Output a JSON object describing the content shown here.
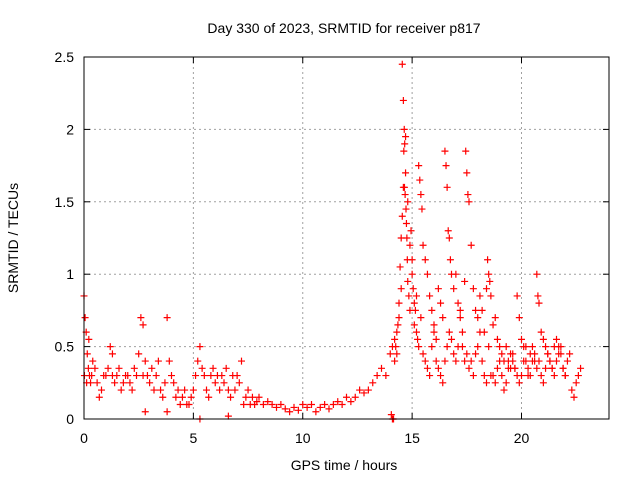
{
  "chart_data": {
    "type": "scatter",
    "title": "Day 330 of 2023, SRMTID for receiver p817",
    "xlabel": "GPS time / hours",
    "ylabel": "SRMTID / TECUs",
    "xlim": [
      0,
      24
    ],
    "ylim": [
      0,
      2.5
    ],
    "x_ticks": [
      0,
      5,
      10,
      15,
      20
    ],
    "y_ticks": [
      0,
      0.5,
      1,
      1.5,
      2,
      2.5
    ],
    "y_tick_labels": [
      "0",
      "0.5",
      "1",
      "1.5",
      "2",
      "2.5"
    ],
    "grid": true,
    "marker": "+",
    "color": "#ff0000",
    "series": [
      {
        "name": "p817",
        "x": [
          0.0,
          0.05,
          0.1,
          0.15,
          0.2,
          0.25,
          0.3,
          0.35,
          0.4,
          0.5,
          0.6,
          0.7,
          0.8,
          0.9,
          1.0,
          1.1,
          1.2,
          1.3,
          1.4,
          1.5,
          1.6,
          1.7,
          1.8,
          1.9,
          2.0,
          2.1,
          2.2,
          2.3,
          2.4,
          2.5,
          2.6,
          2.7,
          2.8,
          2.9,
          3.0,
          3.1,
          3.2,
          3.3,
          3.4,
          3.5,
          3.6,
          3.7,
          3.8,
          3.9,
          4.0,
          4.1,
          4.2,
          4.3,
          4.4,
          4.5,
          4.6,
          4.7,
          4.8,
          4.9,
          5.0,
          5.1,
          5.2,
          5.3,
          5.4,
          5.5,
          5.6,
          5.7,
          5.8,
          5.9,
          6.0,
          6.1,
          6.2,
          6.3,
          6.4,
          6.5,
          6.6,
          6.7,
          6.8,
          6.9,
          7.0,
          7.1,
          7.2,
          7.3,
          7.4,
          7.5,
          7.6,
          7.7,
          7.8,
          7.9,
          8.0,
          8.2,
          8.4,
          8.6,
          8.8,
          9.0,
          9.2,
          9.4,
          9.6,
          9.8,
          10.0,
          10.2,
          10.4,
          10.6,
          10.8,
          11.0,
          11.2,
          11.4,
          11.6,
          11.8,
          12.0,
          12.2,
          12.4,
          12.6,
          12.8,
          13.0,
          13.2,
          13.4,
          13.6,
          13.8,
          14.0,
          14.1,
          14.2,
          14.3,
          14.4,
          14.5,
          14.55,
          14.6,
          14.65,
          14.7,
          14.8,
          14.9,
          15.0,
          15.1,
          15.2,
          15.3,
          15.4,
          15.5,
          15.6,
          15.7,
          15.8,
          15.9,
          16.0,
          16.1,
          16.2,
          16.3,
          16.4,
          16.5,
          16.6,
          16.7,
          16.8,
          16.9,
          17.0,
          17.1,
          17.2,
          17.3,
          17.4,
          17.5,
          17.6,
          17.7,
          17.8,
          17.9,
          18.0,
          18.1,
          18.2,
          18.3,
          18.4,
          18.5,
          18.6,
          18.7,
          18.8,
          18.9,
          19.0,
          19.1,
          19.2,
          19.3,
          19.4,
          19.5,
          19.6,
          19.7,
          19.8,
          19.9,
          20.0,
          20.1,
          20.2,
          20.3,
          20.4,
          20.5,
          20.6,
          20.7,
          20.8,
          20.9,
          21.0,
          21.1,
          21.2,
          21.3,
          21.4,
          21.5,
          21.6,
          21.7,
          21.8,
          21.9,
          22.0,
          22.1,
          22.2,
          22.3,
          22.4,
          22.5,
          22.6,
          22.7,
          0.02,
          0.12,
          0.22,
          1.3,
          2.7,
          2.8,
          3.8,
          5.3,
          6.6,
          14.05,
          14.1,
          14.15,
          14.2,
          14.25,
          14.3,
          14.35,
          14.4,
          14.45,
          14.5,
          14.55,
          14.6,
          14.62,
          14.64,
          14.66,
          14.68,
          14.7,
          14.72,
          14.74,
          14.76,
          14.78,
          14.8,
          14.85,
          14.9,
          14.95,
          15.0,
          15.05,
          15.1,
          15.15,
          15.2,
          15.25,
          15.3,
          15.35,
          15.4,
          15.45,
          15.5,
          15.6,
          15.7,
          15.8,
          15.9,
          16.0,
          16.1,
          16.2,
          16.3,
          16.4,
          16.5,
          16.55,
          16.6,
          16.65,
          16.7,
          16.75,
          16.8,
          16.9,
          17.0,
          17.1,
          17.2,
          17.3,
          17.4,
          17.45,
          17.5,
          17.55,
          17.6,
          17.7,
          17.8,
          17.9,
          18.0,
          18.1,
          18.2,
          18.3,
          18.4,
          18.45,
          18.5,
          18.55,
          18.6,
          18.7,
          18.8,
          18.9,
          19.0,
          19.1,
          19.2,
          19.3,
          19.4,
          19.5,
          19.6,
          19.7,
          19.8,
          19.9,
          20.0,
          20.1,
          20.2,
          20.3,
          20.4,
          20.5,
          20.6,
          20.7,
          20.75,
          20.8,
          20.9,
          21.0,
          21.1,
          21.2,
          21.3,
          21.4,
          21.5,
          21.6,
          21.7,
          21.8,
          21.9,
          22.0
        ],
        "y": [
          0.85,
          0.7,
          0.6,
          0.45,
          0.35,
          0.3,
          0.25,
          0.3,
          0.4,
          0.35,
          0.25,
          0.15,
          0.2,
          0.3,
          0.3,
          0.35,
          0.5,
          0.3,
          0.25,
          0.3,
          0.35,
          0.2,
          0.25,
          0.3,
          0.3,
          0.25,
          0.2,
          0.35,
          0.3,
          0.45,
          0.7,
          0.65,
          0.4,
          0.3,
          0.25,
          0.35,
          0.2,
          0.3,
          0.4,
          0.2,
          0.15,
          0.25,
          0.7,
          0.4,
          0.3,
          0.25,
          0.15,
          0.2,
          0.1,
          0.15,
          0.2,
          0.1,
          0.1,
          0.15,
          0.2,
          0.3,
          0.4,
          0.5,
          0.35,
          0.3,
          0.2,
          0.15,
          0.3,
          0.35,
          0.25,
          0.3,
          0.2,
          0.3,
          0.25,
          0.35,
          0.2,
          0.15,
          0.3,
          0.2,
          0.3,
          0.25,
          0.4,
          0.1,
          0.15,
          0.2,
          0.1,
          0.15,
          0.1,
          0.12,
          0.15,
          0.1,
          0.12,
          0.1,
          0.08,
          0.1,
          0.07,
          0.05,
          0.08,
          0.06,
          0.1,
          0.08,
          0.1,
          0.05,
          0.08,
          0.1,
          0.07,
          0.1,
          0.12,
          0.1,
          0.15,
          0.12,
          0.15,
          0.2,
          0.18,
          0.2,
          0.25,
          0.3,
          0.35,
          0.3,
          0.45,
          0.5,
          0.4,
          0.6,
          0.7,
          0.9,
          2.45,
          2.2,
          1.6,
          1.95,
          1.5,
          1.2,
          1.0,
          0.8,
          0.6,
          0.5,
          0.7,
          0.45,
          0.4,
          0.35,
          0.3,
          0.5,
          0.6,
          0.4,
          0.35,
          0.3,
          0.25,
          0.4,
          0.5,
          0.6,
          0.55,
          0.45,
          0.4,
          0.5,
          0.7,
          0.5,
          0.4,
          0.45,
          0.35,
          0.4,
          0.3,
          0.45,
          0.5,
          0.6,
          0.4,
          0.3,
          0.25,
          0.5,
          0.3,
          0.3,
          0.25,
          0.35,
          0.4,
          0.3,
          0.2,
          0.25,
          0.35,
          0.45,
          0.4,
          0.35,
          0.3,
          0.25,
          0.3,
          0.4,
          0.5,
          0.35,
          0.3,
          0.4,
          0.45,
          0.35,
          0.4,
          0.3,
          0.25,
          0.35,
          0.45,
          0.4,
          0.35,
          0.3,
          0.4,
          0.5,
          0.45,
          0.35,
          0.3,
          0.4,
          0.45,
          0.2,
          0.15,
          0.25,
          0.3,
          0.35,
          0.3,
          0.25,
          0.55,
          0.45,
          0.3,
          0.05,
          0.05,
          0.0,
          0.02,
          0.03,
          0.0,
          0.0,
          0.55,
          0.5,
          0.45,
          0.65,
          0.8,
          1.05,
          1.25,
          1.4,
          1.6,
          1.85,
          2.0,
          1.9,
          1.55,
          1.7,
          1.45,
          1.35,
          1.25,
          1.1,
          0.95,
          0.85,
          0.75,
          1.3,
          1.1,
          0.9,
          0.65,
          0.75,
          0.85,
          0.55,
          1.75,
          1.65,
          1.55,
          1.45,
          1.2,
          1.1,
          1.0,
          0.85,
          0.75,
          0.65,
          0.55,
          0.9,
          0.8,
          0.7,
          1.85,
          1.75,
          1.6,
          1.3,
          1.25,
          1.1,
          1.0,
          0.9,
          1.0,
          0.8,
          0.75,
          0.6,
          0.95,
          1.85,
          1.7,
          1.55,
          1.5,
          1.2,
          0.9,
          0.75,
          0.7,
          0.85,
          0.75,
          0.6,
          0.9,
          1.1,
          1.0,
          0.95,
          0.85,
          0.65,
          0.7,
          0.55,
          0.5,
          0.45,
          0.4,
          0.5,
          0.4,
          0.35,
          0.45,
          0.35,
          0.85,
          0.7,
          0.55,
          0.5,
          0.4,
          0.3,
          0.45,
          0.5,
          0.4,
          1.0,
          0.85,
          0.8,
          0.6,
          0.55,
          0.5,
          0.45,
          0.4,
          0.35,
          0.5,
          0.55,
          0.45,
          0.5,
          0.35,
          0.3
        ]
      }
    ]
  }
}
